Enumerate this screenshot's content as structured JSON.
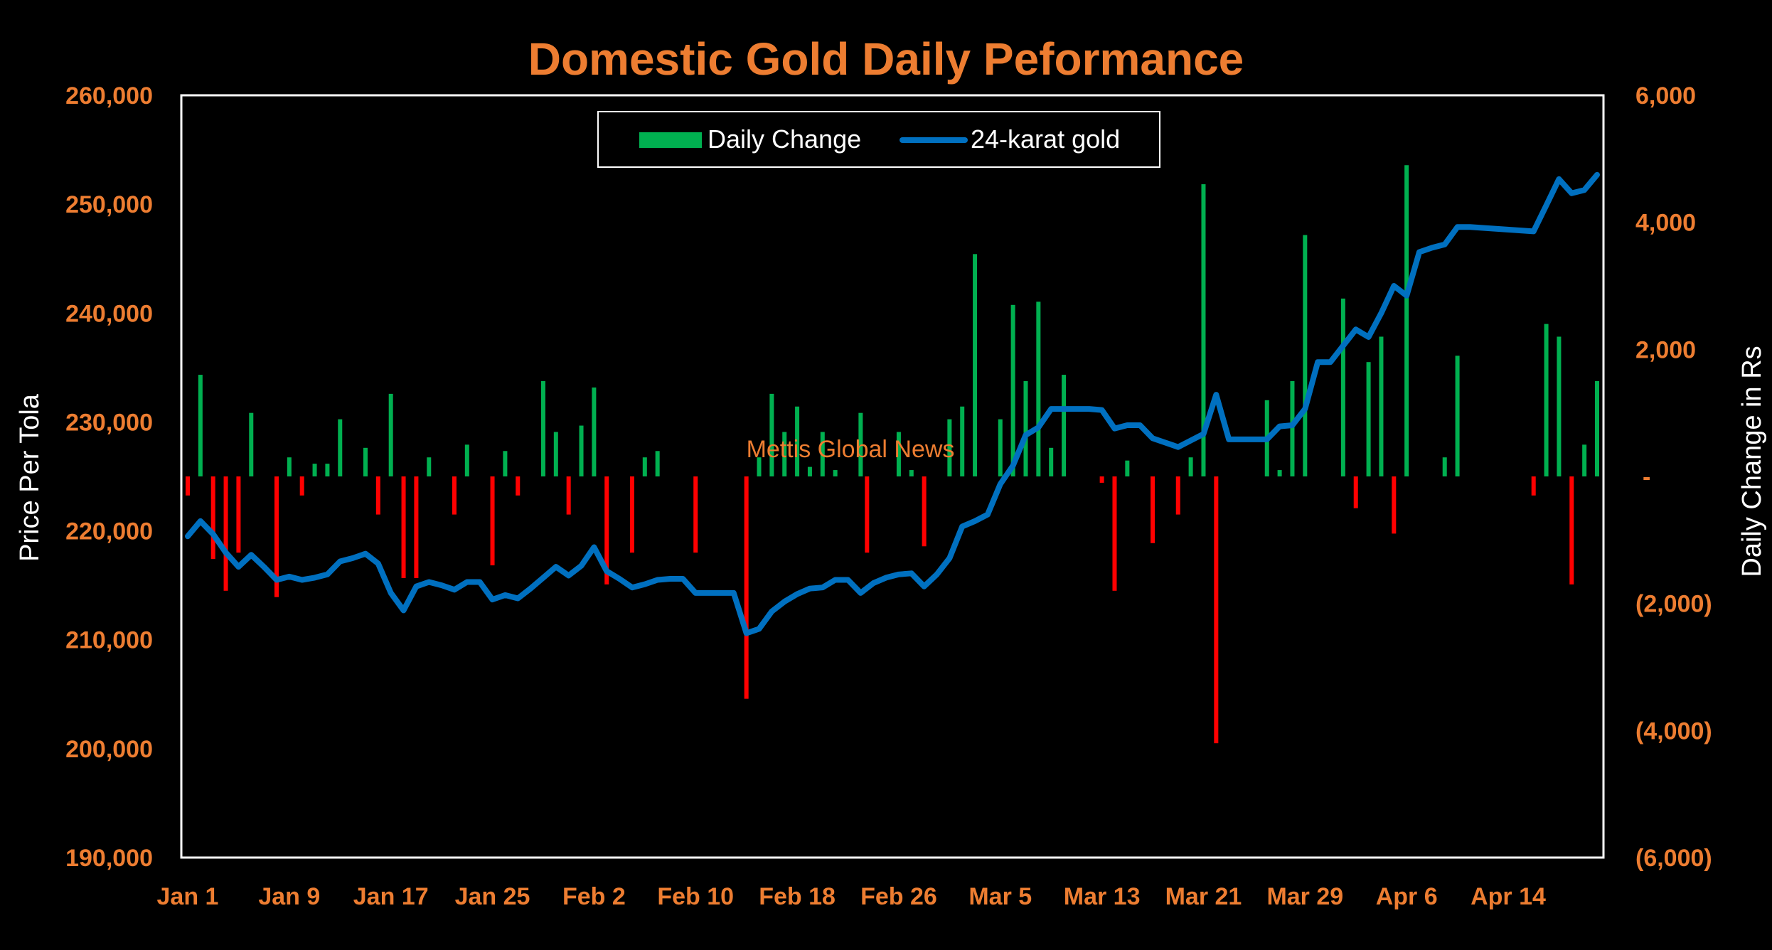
{
  "chart_data": {
    "type": "bar+line",
    "title": "Domestic Gold Daily Peformance",
    "left_axis_label": "Price Per Tola",
    "right_axis_label": "Daily Change in Rs",
    "watermark": "Mettis Global News",
    "left_ylim": [
      190000,
      260000
    ],
    "right_ylim": [
      -6000,
      6000
    ],
    "left_ticks": [
      "190,000",
      "200,000",
      "210,000",
      "220,000",
      "230,000",
      "240,000",
      "250,000",
      "260,000"
    ],
    "right_ticks": [
      "(6,000)",
      "(4,000)",
      "(2,000)",
      "-",
      "2,000",
      "4,000",
      "6,000"
    ],
    "x_ticks": [
      "Jan 1",
      "Jan 9",
      "Jan 17",
      "Jan 25",
      "Feb 2",
      "Feb 10",
      "Feb 18",
      "Feb 26",
      "Mar 5",
      "Mar 13",
      "Mar 21",
      "Mar 29",
      "Apr 6",
      "Apr 14"
    ],
    "x_range_days": [
      0,
      111
    ],
    "legend": {
      "position": "top-center",
      "bar_label": "Daily Change",
      "line_label": "24-karat gold"
    },
    "colors": {
      "positive": "#00b050",
      "negative": "#ff0000",
      "line": "#0070c0",
      "text_orange": "#ed7d31",
      "text_white": "#ffffff",
      "frame": "#ffffff"
    },
    "series": [
      {
        "name": "Daily Change",
        "type": "bar",
        "axis": "right",
        "points": [
          [
            0,
            -300
          ],
          [
            1,
            1600
          ],
          [
            2,
            -1300
          ],
          [
            3,
            -1800
          ],
          [
            4,
            -1200
          ],
          [
            5,
            1000
          ],
          [
            7,
            -1900
          ],
          [
            8,
            300
          ],
          [
            9,
            -300
          ],
          [
            10,
            200
          ],
          [
            11,
            200
          ],
          [
            12,
            900
          ],
          [
            14,
            450
          ],
          [
            15,
            -600
          ],
          [
            16,
            1300
          ],
          [
            17,
            -1600
          ],
          [
            18,
            -1600
          ],
          [
            19,
            300
          ],
          [
            21,
            -600
          ],
          [
            22,
            500
          ],
          [
            24,
            -1400
          ],
          [
            25,
            400
          ],
          [
            26,
            -300
          ],
          [
            28,
            1500
          ],
          [
            29,
            700
          ],
          [
            30,
            -600
          ],
          [
            31,
            800
          ],
          [
            32,
            1400
          ],
          [
            33,
            -1700
          ],
          [
            35,
            -1200
          ],
          [
            36,
            300
          ],
          [
            37,
            400
          ],
          [
            40,
            -1200
          ],
          [
            44,
            -3500
          ],
          [
            45,
            300
          ],
          [
            46,
            1300
          ],
          [
            47,
            700
          ],
          [
            48,
            1100
          ],
          [
            49,
            150
          ],
          [
            50,
            700
          ],
          [
            51,
            100
          ],
          [
            53,
            1000
          ],
          [
            53.5,
            -1200
          ],
          [
            56,
            700
          ],
          [
            57,
            100
          ],
          [
            58,
            -1100
          ],
          [
            60,
            900
          ],
          [
            61,
            1100
          ],
          [
            62,
            3500
          ],
          [
            64,
            900
          ],
          [
            65,
            2700
          ],
          [
            66,
            1500
          ],
          [
            67,
            2750
          ],
          [
            68,
            450
          ],
          [
            69,
            1600
          ],
          [
            72,
            -100
          ],
          [
            73,
            -1800
          ],
          [
            74,
            250
          ],
          [
            76,
            -1050
          ],
          [
            78,
            -600
          ],
          [
            79,
            300
          ],
          [
            80,
            4600
          ],
          [
            81,
            -4200
          ],
          [
            85,
            1200
          ],
          [
            86,
            100
          ],
          [
            87,
            1500
          ],
          [
            88,
            3800
          ],
          [
            91,
            2800
          ],
          [
            92,
            -500
          ],
          [
            93,
            1800
          ],
          [
            94,
            2200
          ],
          [
            95,
            -900
          ],
          [
            96,
            4900
          ],
          [
            99,
            300
          ],
          [
            100,
            1900
          ],
          [
            106,
            -300
          ],
          [
            107,
            2400
          ],
          [
            108,
            2200
          ],
          [
            109,
            -1700
          ],
          [
            110,
            500
          ],
          [
            111,
            1500
          ]
        ]
      },
      {
        "name": "24-karat gold",
        "type": "line",
        "axis": "left",
        "points": [
          [
            0,
            219500
          ],
          [
            1,
            220900
          ],
          [
            2,
            219700
          ],
          [
            3,
            218000
          ],
          [
            4,
            216700
          ],
          [
            5,
            217800
          ],
          [
            6,
            216700
          ],
          [
            7,
            215500
          ],
          [
            8,
            215800
          ],
          [
            9,
            215500
          ],
          [
            10,
            215700
          ],
          [
            11,
            216000
          ],
          [
            12,
            217200
          ],
          [
            13,
            217500
          ],
          [
            14,
            217900
          ],
          [
            15,
            217000
          ],
          [
            16,
            214300
          ],
          [
            17,
            212700
          ],
          [
            18,
            214900
          ],
          [
            19,
            215300
          ],
          [
            20,
            215000
          ],
          [
            21,
            214600
          ],
          [
            22,
            215300
          ],
          [
            23,
            215300
          ],
          [
            24,
            213700
          ],
          [
            25,
            214100
          ],
          [
            26,
            213800
          ],
          [
            27,
            214700
          ],
          [
            28,
            215700
          ],
          [
            29,
            216700
          ],
          [
            30,
            215900
          ],
          [
            31,
            216800
          ],
          [
            32,
            218500
          ],
          [
            33,
            216300
          ],
          [
            34,
            215600
          ],
          [
            35,
            214800
          ],
          [
            36,
            215100
          ],
          [
            37,
            215500
          ],
          [
            38,
            215600
          ],
          [
            39,
            215600
          ],
          [
            40,
            214300
          ],
          [
            41,
            214300
          ],
          [
            42,
            214300
          ],
          [
            43,
            214300
          ],
          [
            44,
            210600
          ],
          [
            45,
            211000
          ],
          [
            46,
            212600
          ],
          [
            47,
            213500
          ],
          [
            48,
            214200
          ],
          [
            49,
            214700
          ],
          [
            50,
            214800
          ],
          [
            51,
            215500
          ],
          [
            52,
            215500
          ],
          [
            53,
            214300
          ],
          [
            54,
            215200
          ],
          [
            55,
            215700
          ],
          [
            56,
            216000
          ],
          [
            57,
            216100
          ],
          [
            58,
            214900
          ],
          [
            59,
            216000
          ],
          [
            60,
            217500
          ],
          [
            61,
            220400
          ],
          [
            62,
            220900
          ],
          [
            63,
            221500
          ],
          [
            64,
            224300
          ],
          [
            65,
            226000
          ],
          [
            66,
            228800
          ],
          [
            67,
            229500
          ],
          [
            68,
            231200
          ],
          [
            69,
            231200
          ],
          [
            70,
            231200
          ],
          [
            71,
            231200
          ],
          [
            72,
            231100
          ],
          [
            73,
            229400
          ],
          [
            74,
            229700
          ],
          [
            75,
            229700
          ],
          [
            76,
            228500
          ],
          [
            77,
            228100
          ],
          [
            78,
            227700
          ],
          [
            79,
            228300
          ],
          [
            80,
            228900
          ],
          [
            81,
            232500
          ],
          [
            82,
            228400
          ],
          [
            83,
            228400
          ],
          [
            84,
            228400
          ],
          [
            85,
            228400
          ],
          [
            86,
            229600
          ],
          [
            87,
            229700
          ],
          [
            88,
            231200
          ],
          [
            89,
            235500
          ],
          [
            90,
            235500
          ],
          [
            91,
            237000
          ],
          [
            92,
            238500
          ],
          [
            93,
            237800
          ],
          [
            94,
            240000
          ],
          [
            95,
            242500
          ],
          [
            96,
            241600
          ],
          [
            97,
            245600
          ],
          [
            98,
            246000
          ],
          [
            99,
            246300
          ],
          [
            100,
            247900
          ],
          [
            101,
            247900
          ],
          [
            106,
            247500
          ],
          [
            107,
            249900
          ],
          [
            108,
            252300
          ],
          [
            109,
            251000
          ],
          [
            110,
            251300
          ],
          [
            111,
            252700
          ]
        ]
      }
    ]
  }
}
